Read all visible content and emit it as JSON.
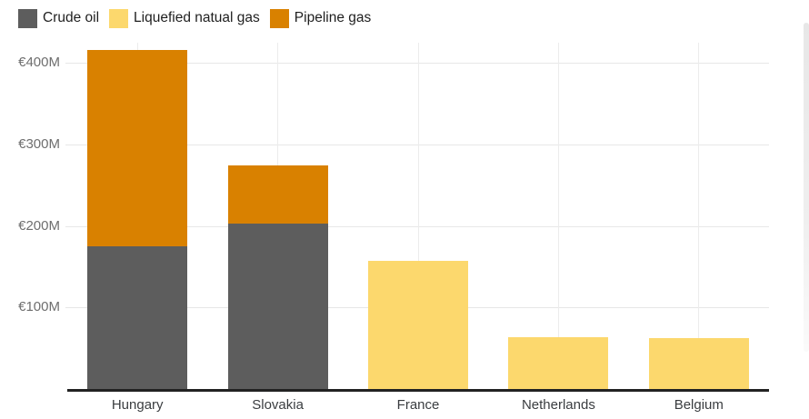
{
  "legend": {
    "items": [
      {
        "label": "Crude oil",
        "color": "#5d5d5d"
      },
      {
        "label": "Liquefied natual gas",
        "color": "#fcd86d"
      },
      {
        "label": "Pipeline gas",
        "color": "#d98100"
      }
    ]
  },
  "chart_data": {
    "type": "bar",
    "stacked": true,
    "title": "",
    "xlabel": "",
    "ylabel": "",
    "categories": [
      "Hungary",
      "Slovakia",
      "France",
      "Netherlands",
      "Belgium"
    ],
    "series": [
      {
        "name": "Crude oil",
        "color": "#5d5d5d",
        "values": [
          175,
          203,
          0,
          0,
          0
        ]
      },
      {
        "name": "Liquefied natual gas",
        "color": "#fcd86d",
        "values": [
          0,
          0,
          157,
          64,
          63
        ]
      },
      {
        "name": "Pipeline gas",
        "color": "#d98100",
        "values": [
          241,
          71,
          0,
          0,
          0
        ]
      }
    ],
    "totals": [
      416,
      274,
      157,
      64,
      63
    ],
    "ylim": [
      0,
      425
    ],
    "yticks": [
      {
        "value": 100,
        "label": "€100M"
      },
      {
        "value": 200,
        "label": "€200M"
      },
      {
        "value": 300,
        "label": "€300M"
      },
      {
        "value": 400,
        "label": "€400M"
      }
    ],
    "currency": "€",
    "unit": "M",
    "grid": true,
    "legend_position": "top-left"
  },
  "colors": {
    "background": "#ffffff",
    "axis": "#222222",
    "gridline": "#e7e7e7",
    "ytick_text": "#6e6e6e",
    "xtick_text": "#3a3d40",
    "legend_text": "#1f1f1f"
  }
}
